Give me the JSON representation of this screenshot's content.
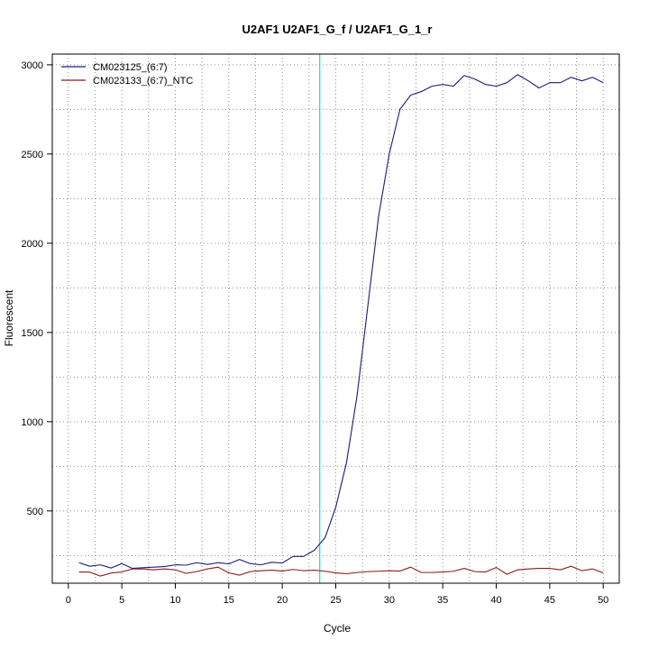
{
  "chart_data": {
    "type": "line",
    "title": "U2AF1  U2AF1_G_f / U2AF1_G_1_r",
    "xlabel": "Cycle",
    "ylabel": "Fluorescent",
    "xlim": [
      -1.5,
      51.5
    ],
    "ylim": [
      95,
      3060
    ],
    "x_ticks": [
      0,
      5,
      10,
      15,
      20,
      25,
      30,
      35,
      40,
      45,
      50
    ],
    "y_ticks": [
      500,
      1000,
      1500,
      2000,
      2500,
      3000
    ],
    "grid": true,
    "grid_style": "dotted",
    "legend_position": "top-left",
    "threshold_cycle": 23.5,
    "threshold_color": "#00e5e5",
    "series": [
      {
        "name": "CM023125_(6:7)",
        "color": "#1a1a80",
        "x": [
          1,
          2,
          3,
          4,
          5,
          6,
          7,
          8,
          9,
          10,
          11,
          12,
          13,
          14,
          15,
          16,
          17,
          18,
          19,
          20,
          21,
          22,
          23,
          24,
          25,
          26,
          27,
          28,
          29,
          30,
          31,
          32,
          33,
          34,
          35,
          36,
          37,
          38,
          39,
          40,
          41,
          42,
          43,
          44,
          45,
          46,
          47,
          48,
          49,
          50
        ],
        "values": [
          210,
          190,
          198,
          180,
          205,
          178,
          182,
          185,
          188,
          198,
          196,
          210,
          200,
          210,
          203,
          228,
          205,
          198,
          212,
          208,
          245,
          245,
          280,
          350,
          520,
          770,
          1150,
          1650,
          2150,
          2500,
          2750,
          2830,
          2850,
          2880,
          2890,
          2880,
          2940,
          2920,
          2890,
          2880,
          2900,
          2945,
          2910,
          2870,
          2900,
          2900,
          2930,
          2910,
          2930,
          2900
        ]
      },
      {
        "name": "CM023133_(6:7)_NTC",
        "color": "#8b1a1a",
        "x": [
          1,
          2,
          3,
          4,
          5,
          6,
          7,
          8,
          9,
          10,
          11,
          12,
          13,
          14,
          15,
          16,
          17,
          18,
          19,
          20,
          21,
          22,
          23,
          24,
          25,
          26,
          27,
          28,
          29,
          30,
          31,
          32,
          33,
          34,
          35,
          36,
          37,
          38,
          39,
          40,
          41,
          42,
          43,
          44,
          45,
          46,
          47,
          48,
          49,
          50
        ],
        "values": [
          158,
          157,
          135,
          152,
          158,
          175,
          175,
          170,
          175,
          170,
          150,
          160,
          175,
          185,
          153,
          140,
          160,
          165,
          168,
          163,
          172,
          165,
          168,
          162,
          153,
          148,
          155,
          160,
          162,
          165,
          163,
          185,
          155,
          155,
          158,
          162,
          178,
          160,
          158,
          183,
          145,
          170,
          175,
          178,
          178,
          170,
          190,
          165,
          175,
          153
        ]
      }
    ]
  }
}
